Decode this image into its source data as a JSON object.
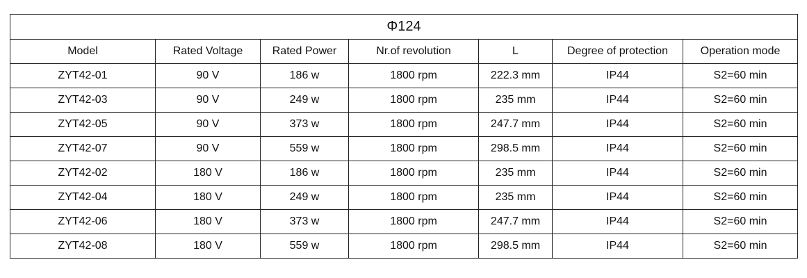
{
  "table": {
    "title": "Φ124",
    "columns": [
      "Model",
      "Rated Voltage",
      "Rated Power",
      "Nr.of revolution",
      "L",
      "Degree of protection",
      "Operation mode"
    ],
    "rows": [
      [
        "ZYT42-01",
        "90 V",
        "186 w",
        "1800 rpm",
        "222.3 mm",
        "IP44",
        "S2=60 min"
      ],
      [
        "ZYT42-03",
        "90 V",
        "249 w",
        "1800 rpm",
        "235 mm",
        "IP44",
        "S2=60 min"
      ],
      [
        "ZYT42-05",
        "90 V",
        "373 w",
        "1800 rpm",
        "247.7 mm",
        "IP44",
        "S2=60 min"
      ],
      [
        "ZYT42-07",
        "90 V",
        "559 w",
        "1800 rpm",
        "298.5 mm",
        "IP44",
        "S2=60 min"
      ],
      [
        "ZYT42-02",
        "180 V",
        "186 w",
        "1800 rpm",
        "235 mm",
        "IP44",
        "S2=60 min"
      ],
      [
        "ZYT42-04",
        "180 V",
        "249 w",
        "1800 rpm",
        "235 mm",
        "IP44",
        "S2=60 min"
      ],
      [
        "ZYT42-06",
        "180 V",
        "373 w",
        "1800 rpm",
        "247.7 mm",
        "IP44",
        "S2=60 min"
      ],
      [
        "ZYT42-08",
        "180 V",
        "559 w",
        "1800 rpm",
        "298.5 mm",
        "IP44",
        "S2=60 min"
      ]
    ]
  }
}
